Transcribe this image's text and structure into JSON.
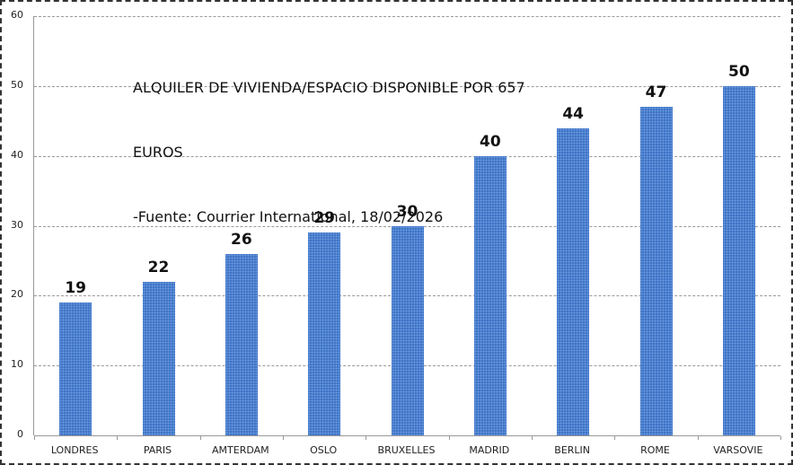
{
  "chart_data": {
    "type": "bar",
    "title": "ALQUILER DE VIVIENDA/ESPACIO DISPONIBLE POR 657 EUROS",
    "title_lines": [
      "ALQUILER DE VIVIENDA/ESPACIO DISPONIBLE POR 657",
      "EUROS",
      "-Fuente: Courrier International, 18/02/2026"
    ],
    "subtitle": "-Fuente: Courrier International, 18/02/2026",
    "categories": [
      "LONDRES",
      "PARIS",
      "AMTERDAM",
      "OSLO",
      "BRUXELLES",
      "MADRID",
      "BERLIN",
      "ROME",
      "VARSOVIE"
    ],
    "values": [
      19,
      22,
      26,
      29,
      30,
      40,
      44,
      47,
      50
    ],
    "value_labels": [
      "19",
      "22",
      "26",
      "29",
      "30",
      "40",
      "44",
      "47",
      "50"
    ],
    "xlabel": "",
    "ylabel": "",
    "ylim": [
      0,
      60
    ],
    "yticks": [
      "0",
      "10",
      "20",
      "30",
      "40",
      "50",
      "60"
    ],
    "grid": true,
    "legend": "none",
    "bar_color": "#3f74c6"
  }
}
